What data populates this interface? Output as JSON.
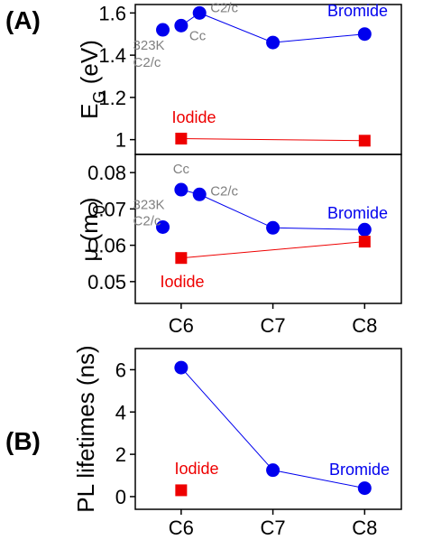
{
  "panel_labels": {
    "a": "(A)",
    "b": "(B)"
  },
  "colors": {
    "bromide": "#0000ee",
    "iodide": "#ee0000",
    "phase_label": "#808080"
  },
  "chart_data": [
    {
      "type": "scatter",
      "panel": "(A)",
      "ylabel": "E_G (eV)",
      "ylabel_parts": {
        "main": "E",
        "sub": "G",
        "unit": " (eV)"
      },
      "ylim": [
        0.93,
        1.64
      ],
      "yticks": [
        "1",
        "1.2",
        "1.4",
        "1.6"
      ],
      "ytick_values": [
        1.0,
        1.2,
        1.4,
        1.6
      ],
      "x_categories": [
        "C6",
        "C7",
        "C8"
      ],
      "series": [
        {
          "name": "Bromide",
          "color": "#0000ee",
          "marker": "circle",
          "points": [
            {
              "x": 5.8,
              "y": 1.52
            },
            {
              "x": 6.0,
              "y": 1.54
            },
            {
              "x": 6.2,
              "y": 1.6
            },
            {
              "x": 7.0,
              "y": 1.46
            },
            {
              "x": 8.0,
              "y": 1.5
            }
          ],
          "line_from_index": 1
        },
        {
          "name": "Iodide",
          "color": "#ee0000",
          "marker": "square",
          "points": [
            {
              "x": 6.0,
              "y": 1.005
            },
            {
              "x": 8.0,
              "y": 0.995
            }
          ],
          "line_from_index": 0
        }
      ],
      "annotations": [
        {
          "text": "C2/c",
          "x": 6.2,
          "y": 1.6
        },
        {
          "text": "Cc",
          "x": 6.0,
          "y": 1.54
        },
        {
          "text": "323K",
          "x": 5.8,
          "y": 1.52
        },
        {
          "text": "C2/c",
          "x": 5.8,
          "y": 1.52
        }
      ],
      "legend_labels": [
        {
          "text": "Bromide",
          "color": "#0000ee"
        },
        {
          "text": "Iodide",
          "color": "#ee0000"
        }
      ]
    },
    {
      "type": "scatter",
      "panel": "(A)",
      "ylabel": "μ (m_0)",
      "ylabel_parts": {
        "main": "μ (m",
        "sub": "0",
        "unit": ")"
      },
      "ylim": [
        0.044,
        0.085
      ],
      "yticks": [
        "0.05",
        "0.06",
        "0.07",
        "0.08"
      ],
      "ytick_values": [
        0.05,
        0.06,
        0.07,
        0.08
      ],
      "x_categories": [
        "C6",
        "C7",
        "C8"
      ],
      "xlim": [
        5.5,
        8.4
      ],
      "series": [
        {
          "name": "Bromide",
          "color": "#0000ee",
          "marker": "circle",
          "points": [
            {
              "x": 5.8,
              "y": 0.065
            },
            {
              "x": 6.0,
              "y": 0.0753
            },
            {
              "x": 6.2,
              "y": 0.074
            },
            {
              "x": 7.0,
              "y": 0.0648
            },
            {
              "x": 8.0,
              "y": 0.0643
            }
          ],
          "line_from_index": 1
        },
        {
          "name": "Iodide",
          "color": "#ee0000",
          "marker": "square",
          "points": [
            {
              "x": 6.0,
              "y": 0.0565
            },
            {
              "x": 8.0,
              "y": 0.061
            }
          ],
          "line_from_index": 0
        }
      ],
      "annotations": [
        {
          "text": "Cc",
          "x": 6.0,
          "y": 0.0753
        },
        {
          "text": "C2/c",
          "x": 6.2,
          "y": 0.074
        },
        {
          "text": "323K",
          "x": 5.8,
          "y": 0.065
        },
        {
          "text": "C2/c",
          "x": 5.8,
          "y": 0.065
        }
      ],
      "legend_labels": [
        {
          "text": "Bromide",
          "color": "#0000ee"
        },
        {
          "text": "Iodide",
          "color": "#ee0000"
        }
      ]
    },
    {
      "type": "scatter",
      "panel": "(B)",
      "ylabel": "PL lifetimes (ns)",
      "ylim": [
        -0.6,
        7.0
      ],
      "yticks": [
        "0",
        "2",
        "4",
        "6"
      ],
      "ytick_values": [
        0,
        2,
        4,
        6
      ],
      "x_categories": [
        "C6",
        "C7",
        "C8"
      ],
      "xlim": [
        5.5,
        8.4
      ],
      "series": [
        {
          "name": "Bromide",
          "color": "#0000ee",
          "marker": "circle",
          "points": [
            {
              "x": 6.0,
              "y": 6.1
            },
            {
              "x": 7.0,
              "y": 1.25
            },
            {
              "x": 8.0,
              "y": 0.4
            }
          ],
          "line_from_index": 0
        },
        {
          "name": "Iodide",
          "color": "#ee0000",
          "marker": "square",
          "points": [
            {
              "x": 6.0,
              "y": 0.3
            }
          ],
          "line_from_index": 0
        }
      ],
      "annotations": [],
      "legend_labels": [
        {
          "text": "Iodide",
          "color": "#ee0000"
        },
        {
          "text": "Bromide",
          "color": "#0000ee"
        }
      ]
    }
  ]
}
